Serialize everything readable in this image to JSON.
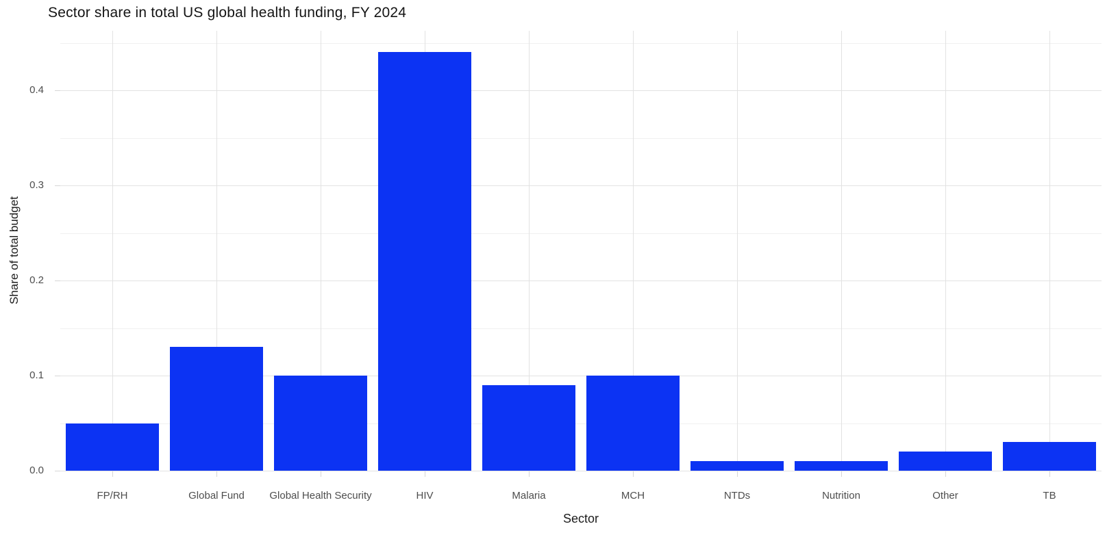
{
  "chart_data": {
    "type": "bar",
    "title": "Sector share in total US global health funding, FY 2024",
    "xlabel": "Sector",
    "ylabel": "Share of total budget",
    "categories": [
      "FP/RH",
      "Global Fund",
      "Global Health Security",
      "HIV",
      "Malaria",
      "MCH",
      "NTDs",
      "Nutrition",
      "Other",
      "TB"
    ],
    "values": [
      0.05,
      0.13,
      0.1,
      0.44,
      0.09,
      0.1,
      0.01,
      0.01,
      0.02,
      0.03
    ],
    "ylim": [
      0,
      0.4626
    ],
    "yticks": [
      0.0,
      0.1,
      0.2,
      0.3,
      0.4
    ],
    "ytick_labels": [
      "0.0",
      "0.1",
      "0.2",
      "0.3",
      "0.4"
    ],
    "minor_tick_step": 0.05,
    "grid": true,
    "legend": "none",
    "bar_width_fraction": 0.89,
    "colors": {
      "bar_fill": "#0c33f3",
      "major_gridline": "#e2e2e2",
      "minor_gridline": "#f0f0f0",
      "axis_tick": "#d6d6d6",
      "tick_label": "#4d4d4d",
      "axis_title": "#1c1c1c",
      "title": "#141414",
      "background": "#ffffff"
    }
  }
}
